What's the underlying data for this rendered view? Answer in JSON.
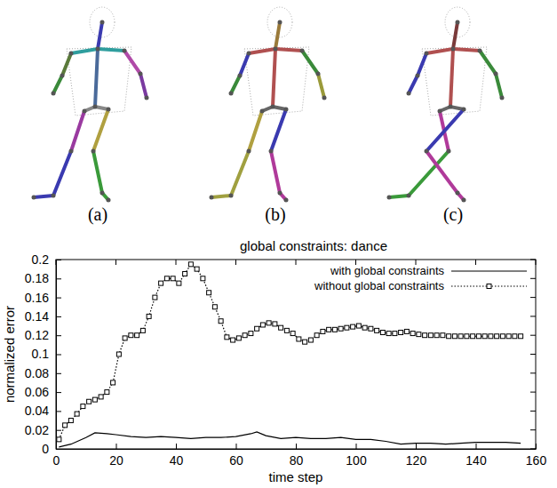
{
  "panels": [
    "(a)",
    "(b)",
    "(c)"
  ],
  "chart_data": {
    "type": "line",
    "title": "global constraints: dance",
    "x_label": "time step",
    "y_label": "normalized error",
    "xlim": [
      0,
      160
    ],
    "xticks": [
      0,
      20,
      40,
      60,
      80,
      100,
      120,
      140,
      160
    ],
    "ylim": [
      0,
      0.2
    ],
    "yticks": [
      0,
      0.02,
      0.04,
      0.06,
      0.08,
      0.1,
      0.12,
      0.14,
      0.16,
      0.18,
      0.2
    ],
    "grid": false,
    "legend": "top-right",
    "series": [
      {
        "name": "with global constraints",
        "color": "#000000",
        "line_style": "solid",
        "marker": "none",
        "x": [
          1,
          5,
          10,
          13,
          17,
          20,
          25,
          30,
          35,
          40,
          45,
          50,
          55,
          60,
          65,
          67,
          70,
          75,
          80,
          85,
          90,
          95,
          100,
          105,
          110,
          115,
          120,
          125,
          130,
          135,
          140,
          145,
          150,
          155
        ],
        "values": [
          0.002,
          0.005,
          0.012,
          0.017,
          0.016,
          0.015,
          0.013,
          0.012,
          0.013,
          0.012,
          0.011,
          0.012,
          0.012,
          0.013,
          0.016,
          0.018,
          0.014,
          0.011,
          0.012,
          0.011,
          0.011,
          0.012,
          0.01,
          0.01,
          0.008,
          0.005,
          0.006,
          0.006,
          0.005,
          0.006,
          0.007,
          0.007,
          0.007,
          0.006
        ]
      },
      {
        "name": "without global constraints",
        "color": "#000000",
        "line_style": "dotted",
        "marker": "square",
        "x": [
          1,
          3,
          5,
          7,
          9,
          11,
          13,
          15,
          17,
          19,
          21,
          23,
          25,
          27,
          29,
          31,
          33,
          35,
          37,
          39,
          41,
          43,
          45,
          47,
          49,
          51,
          53,
          55,
          57,
          59,
          61,
          63,
          65,
          67,
          69,
          71,
          73,
          75,
          77,
          79,
          81,
          83,
          85,
          87,
          89,
          91,
          93,
          95,
          97,
          99,
          101,
          103,
          105,
          107,
          109,
          111,
          113,
          115,
          117,
          119,
          121,
          123,
          125,
          127,
          129,
          131,
          133,
          135,
          137,
          139,
          141,
          143,
          145,
          147,
          149,
          151,
          153,
          155
        ],
        "values": [
          0.01,
          0.025,
          0.03,
          0.037,
          0.045,
          0.05,
          0.052,
          0.055,
          0.06,
          0.07,
          0.1,
          0.117,
          0.12,
          0.12,
          0.125,
          0.14,
          0.16,
          0.175,
          0.18,
          0.18,
          0.175,
          0.185,
          0.195,
          0.19,
          0.18,
          0.165,
          0.15,
          0.135,
          0.118,
          0.115,
          0.117,
          0.12,
          0.122,
          0.127,
          0.131,
          0.133,
          0.132,
          0.128,
          0.125,
          0.122,
          0.116,
          0.113,
          0.115,
          0.12,
          0.124,
          0.126,
          0.126,
          0.127,
          0.128,
          0.129,
          0.13,
          0.128,
          0.127,
          0.125,
          0.123,
          0.122,
          0.122,
          0.123,
          0.124,
          0.122,
          0.121,
          0.12,
          0.12,
          0.12,
          0.12,
          0.119,
          0.119,
          0.119,
          0.119,
          0.119,
          0.119,
          0.119,
          0.119,
          0.119,
          0.119,
          0.119,
          0.119,
          0.119
        ]
      }
    ]
  }
}
